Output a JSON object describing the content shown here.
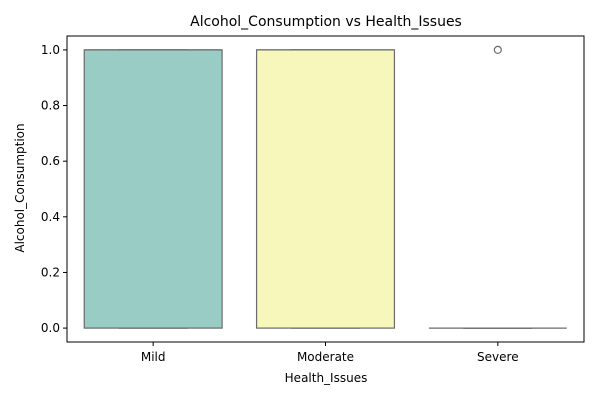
{
  "chart_data": {
    "type": "box",
    "title": "Alcohol_Consumption vs Health_Issues",
    "xlabel": "Health_Issues",
    "ylabel": "Alcohol_Consumption",
    "categories": [
      "Mild",
      "Moderate",
      "Severe"
    ],
    "boxes": [
      {
        "category": "Mild",
        "min": 0.0,
        "q1": 0.0,
        "median": 1.0,
        "q3": 1.0,
        "max": 1.0,
        "outliers": [],
        "color": "#99ccc4"
      },
      {
        "category": "Moderate",
        "min": 0.0,
        "q1": 0.0,
        "median": 1.0,
        "q3": 1.0,
        "max": 1.0,
        "outliers": [],
        "color": "#f7f7bb"
      },
      {
        "category": "Severe",
        "min": 0.0,
        "q1": 0.0,
        "median": 0.0,
        "q3": 0.0,
        "max": 0.0,
        "outliers": [
          1.0
        ],
        "color": "#bebada"
      }
    ],
    "ylim": [
      -0.05,
      1.05
    ],
    "yticks": [
      "0.0",
      "0.2",
      "0.4",
      "0.6",
      "0.8",
      "1.0"
    ],
    "grid": false,
    "legend": "none"
  }
}
